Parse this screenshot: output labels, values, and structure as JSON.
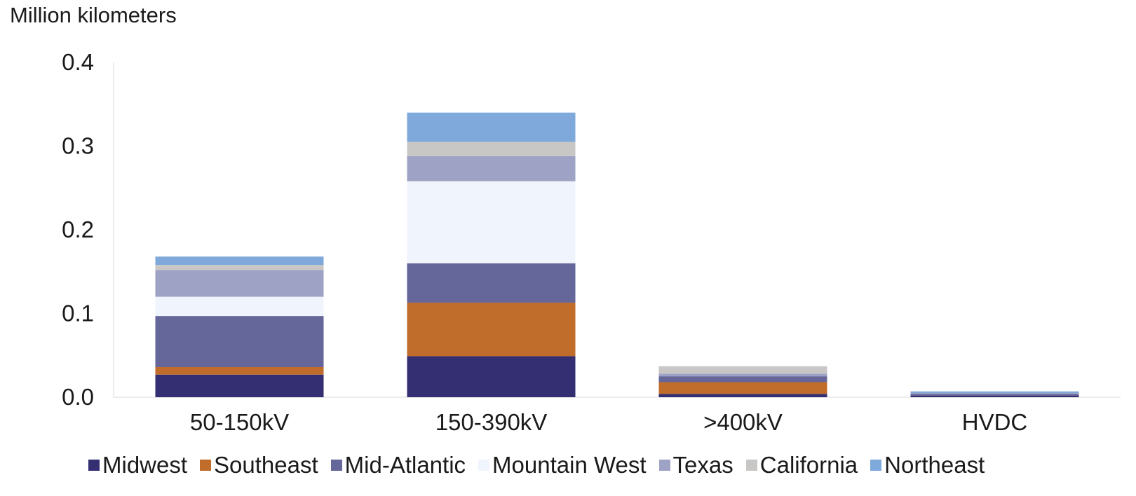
{
  "chart_data": {
    "type": "bar",
    "stacked": true,
    "title": "",
    "ylabel": "Million kilometers",
    "xlabel": "",
    "ylim": [
      0,
      0.4
    ],
    "yticks": [
      "0.0",
      "0.1",
      "0.2",
      "0.3",
      "0.4"
    ],
    "ytick_values": [
      0,
      0.1,
      0.2,
      0.3,
      0.4
    ],
    "grid": false,
    "legend_position": "bottom",
    "categories": [
      "50-150kV",
      "150-390kV",
      ">400kV",
      "HVDC"
    ],
    "series": [
      {
        "name": "Midwest",
        "color": "#342e72",
        "values": [
          0.027,
          0.049,
          0.004,
          0.002
        ]
      },
      {
        "name": "Southeast",
        "color": "#c06c2b",
        "values": [
          0.009,
          0.064,
          0.014,
          0.0
        ]
      },
      {
        "name": "Mid-Atlantic",
        "color": "#656699",
        "values": [
          0.061,
          0.047,
          0.007,
          0.002
        ]
      },
      {
        "name": "Mountain West",
        "color": "#f0f4fd",
        "values": [
          0.023,
          0.098,
          0.0,
          0.0
        ]
      },
      {
        "name": "Texas",
        "color": "#9ea2c4",
        "values": [
          0.032,
          0.03,
          0.003,
          0.001
        ]
      },
      {
        "name": "California",
        "color": "#c9c7c6",
        "values": [
          0.006,
          0.017,
          0.009,
          0.0
        ]
      },
      {
        "name": "Northeast",
        "color": "#80a9db",
        "values": [
          0.01,
          0.035,
          0.0,
          0.002
        ]
      }
    ]
  }
}
